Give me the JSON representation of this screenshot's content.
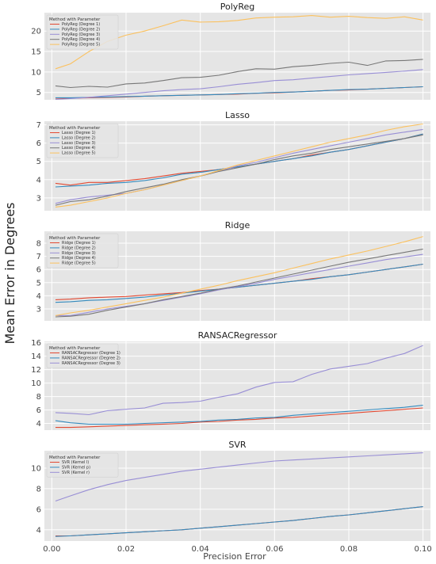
{
  "figure": {
    "ylabel": "Mean Error in Degrees",
    "xlabel": "Precision Error",
    "x_ticks": [
      "0.00",
      "0.02",
      "0.04",
      "0.06",
      "0.08",
      "0.10"
    ],
    "x_tick_values": [
      0,
      0.02,
      0.04,
      0.06,
      0.08,
      0.1
    ]
  },
  "chart_data": [
    {
      "type": "line",
      "title": "PolyReg",
      "xlim": [
        -0.002,
        0.102
      ],
      "ylim": [
        3.2,
        24.5
      ],
      "yticks": [
        5,
        10,
        15,
        20
      ],
      "grid": true,
      "legend_title": "Method with Parameter",
      "legend_position": "top-left",
      "x": [
        0.001,
        0.005,
        0.01,
        0.015,
        0.02,
        0.025,
        0.03,
        0.035,
        0.04,
        0.045,
        0.05,
        0.055,
        0.06,
        0.065,
        0.07,
        0.075,
        0.08,
        0.085,
        0.09,
        0.095,
        0.1
      ],
      "series": [
        {
          "name": "PolyReg (Degree 1)",
          "color": "#e24a33",
          "values": [
            3.6,
            3.6,
            3.7,
            3.8,
            3.9,
            4.1,
            4.2,
            4.3,
            4.4,
            4.5,
            4.6,
            4.8,
            4.9,
            5.1,
            5.3,
            5.5,
            5.6,
            5.8,
            6.0,
            6.2,
            6.4
          ]
        },
        {
          "name": "PolyReg (Degree 2)",
          "color": "#348abd",
          "values": [
            3.7,
            3.7,
            3.8,
            3.9,
            4.0,
            4.1,
            4.2,
            4.3,
            4.4,
            4.5,
            4.7,
            4.8,
            5.0,
            5.1,
            5.3,
            5.5,
            5.7,
            5.8,
            6.0,
            6.2,
            6.4
          ]
        },
        {
          "name": "PolyReg (Degree 3)",
          "color": "#988ed5",
          "values": [
            3.3,
            3.5,
            3.8,
            4.2,
            4.6,
            5.0,
            5.4,
            5.7,
            5.9,
            6.4,
            7.0,
            7.4,
            7.9,
            8.1,
            8.5,
            8.9,
            9.3,
            9.6,
            9.9,
            10.2,
            10.6
          ]
        },
        {
          "name": "PolyReg (Degree 4)",
          "color": "#777777",
          "values": [
            6.6,
            6.2,
            6.5,
            6.3,
            7.1,
            7.3,
            7.9,
            8.6,
            8.7,
            9.2,
            10.1,
            10.8,
            10.7,
            11.3,
            11.6,
            12.1,
            12.4,
            11.6,
            12.7,
            12.8,
            13.1
          ]
        },
        {
          "name": "PolyReg (Degree 5)",
          "color": "#fbc15e",
          "values": [
            10.8,
            12.0,
            15.0,
            17.5,
            19.0,
            20.0,
            21.3,
            22.7,
            22.2,
            22.3,
            22.6,
            23.2,
            23.4,
            23.5,
            23.8,
            23.4,
            23.6,
            23.3,
            23.1,
            23.5,
            22.7
          ]
        }
      ]
    },
    {
      "type": "line",
      "title": "Lasso",
      "xlim": [
        -0.002,
        0.102
      ],
      "ylim": [
        2.3,
        7.2
      ],
      "yticks": [
        3,
        4,
        5,
        6,
        7
      ],
      "grid": true,
      "legend_title": "Method with Parameter",
      "legend_position": "top-left",
      "x": [
        0.001,
        0.005,
        0.01,
        0.015,
        0.02,
        0.025,
        0.03,
        0.035,
        0.04,
        0.045,
        0.05,
        0.055,
        0.06,
        0.065,
        0.07,
        0.075,
        0.08,
        0.085,
        0.09,
        0.095,
        0.1
      ],
      "series": [
        {
          "name": "Lasso (Degree 1)",
          "color": "#e24a33",
          "values": [
            3.8,
            3.7,
            3.85,
            3.85,
            3.95,
            4.05,
            4.2,
            4.35,
            4.45,
            4.55,
            4.7,
            4.85,
            5.0,
            5.15,
            5.35,
            5.5,
            5.65,
            5.85,
            6.05,
            6.25,
            6.5
          ]
        },
        {
          "name": "Lasso (Degree 2)",
          "color": "#348abd",
          "values": [
            3.6,
            3.65,
            3.7,
            3.8,
            3.85,
            3.95,
            4.1,
            4.3,
            4.4,
            4.55,
            4.7,
            4.85,
            5.0,
            5.15,
            5.3,
            5.5,
            5.65,
            5.85,
            6.05,
            6.25,
            6.5
          ]
        },
        {
          "name": "Lasso (Degree 3)",
          "color": "#988ed5",
          "values": [
            2.7,
            2.9,
            3.05,
            3.15,
            3.25,
            3.45,
            3.7,
            3.95,
            4.2,
            4.45,
            4.75,
            4.95,
            5.2,
            5.45,
            5.65,
            5.85,
            6.05,
            6.25,
            6.45,
            6.6,
            6.75
          ]
        },
        {
          "name": "Lasso (Degree 4)",
          "color": "#777777",
          "values": [
            2.6,
            2.8,
            2.9,
            3.1,
            3.35,
            3.55,
            3.75,
            4.0,
            4.2,
            4.45,
            4.65,
            4.85,
            5.1,
            5.3,
            5.45,
            5.65,
            5.8,
            5.95,
            6.1,
            6.25,
            6.45
          ]
        },
        {
          "name": "Lasso (Degree 5)",
          "color": "#fbc15e",
          "values": [
            2.5,
            2.6,
            2.8,
            3.0,
            3.25,
            3.45,
            3.7,
            3.95,
            4.2,
            4.5,
            4.8,
            5.05,
            5.3,
            5.55,
            5.8,
            6.05,
            6.25,
            6.45,
            6.7,
            6.9,
            7.05
          ]
        }
      ]
    },
    {
      "type": "line",
      "title": "Ridge",
      "xlim": [
        -0.002,
        0.102
      ],
      "ylim": [
        2.1,
        8.9
      ],
      "yticks": [
        3,
        4,
        5,
        6,
        7,
        8
      ],
      "grid": true,
      "legend_title": "Method with Parameter",
      "legend_position": "top-left",
      "x": [
        0.001,
        0.005,
        0.01,
        0.015,
        0.02,
        0.025,
        0.03,
        0.035,
        0.04,
        0.045,
        0.05,
        0.055,
        0.06,
        0.065,
        0.07,
        0.075,
        0.08,
        0.085,
        0.09,
        0.095,
        0.1
      ],
      "series": [
        {
          "name": "Ridge (Degree 1)",
          "color": "#e24a33",
          "values": [
            3.7,
            3.75,
            3.85,
            3.9,
            3.95,
            4.05,
            4.15,
            4.25,
            4.4,
            4.5,
            4.65,
            4.8,
            4.95,
            5.1,
            5.3,
            5.45,
            5.6,
            5.8,
            6.0,
            6.2,
            6.4
          ]
        },
        {
          "name": "Ridge (Degree 2)",
          "color": "#348abd",
          "values": [
            3.5,
            3.55,
            3.65,
            3.7,
            3.8,
            3.9,
            4.05,
            4.2,
            4.35,
            4.5,
            4.65,
            4.8,
            4.95,
            5.1,
            5.25,
            5.45,
            5.6,
            5.8,
            6.0,
            6.2,
            6.4
          ]
        },
        {
          "name": "Ridge (Degree 3)",
          "color": "#988ed5",
          "values": [
            2.5,
            2.5,
            2.75,
            3.0,
            3.2,
            3.4,
            3.65,
            3.9,
            4.15,
            4.45,
            4.7,
            4.95,
            5.25,
            5.5,
            5.75,
            6.0,
            6.25,
            6.5,
            6.75,
            6.95,
            7.15
          ]
        },
        {
          "name": "Ridge (Degree 4)",
          "color": "#777777",
          "values": [
            2.4,
            2.45,
            2.6,
            2.9,
            3.15,
            3.4,
            3.7,
            3.95,
            4.2,
            4.5,
            4.75,
            5.05,
            5.35,
            5.65,
            5.95,
            6.25,
            6.55,
            6.8,
            7.05,
            7.3,
            7.55
          ]
        },
        {
          "name": "Ridge (Degree 5)",
          "color": "#fbc15e",
          "values": [
            2.5,
            2.7,
            2.9,
            3.15,
            3.4,
            3.65,
            3.9,
            4.2,
            4.5,
            4.8,
            5.15,
            5.45,
            5.75,
            6.1,
            6.45,
            6.8,
            7.1,
            7.4,
            7.75,
            8.1,
            8.5
          ]
        }
      ]
    },
    {
      "type": "line",
      "title": "RANSACRegressor",
      "xlim": [
        -0.002,
        0.102
      ],
      "ylim": [
        3.0,
        16.2
      ],
      "yticks": [
        4,
        6,
        8,
        10,
        12,
        14,
        16
      ],
      "grid": true,
      "legend_title": "Method with Parameter",
      "legend_position": "top-left",
      "x": [
        0.001,
        0.005,
        0.01,
        0.015,
        0.02,
        0.025,
        0.03,
        0.035,
        0.04,
        0.045,
        0.05,
        0.055,
        0.06,
        0.065,
        0.07,
        0.075,
        0.08,
        0.085,
        0.09,
        0.095,
        0.1
      ],
      "series": [
        {
          "name": "RANSACRegressor (Degree 1)",
          "color": "#e24a33",
          "values": [
            3.4,
            3.4,
            3.5,
            3.6,
            3.7,
            3.8,
            3.9,
            4.0,
            4.2,
            4.3,
            4.5,
            4.6,
            4.8,
            4.9,
            5.1,
            5.3,
            5.5,
            5.7,
            5.9,
            6.1,
            6.3
          ]
        },
        {
          "name": "RANSACRegressor (Degree 2)",
          "color": "#348abd",
          "values": [
            4.4,
            4.1,
            3.9,
            3.9,
            3.9,
            4.0,
            4.1,
            4.2,
            4.3,
            4.5,
            4.6,
            4.8,
            4.9,
            5.2,
            5.4,
            5.6,
            5.8,
            6.0,
            6.2,
            6.4,
            6.7
          ]
        },
        {
          "name": "RANSACRegressor (Degree 3)",
          "color": "#988ed5",
          "values": [
            5.6,
            5.5,
            5.3,
            5.9,
            6.1,
            6.3,
            7.0,
            7.1,
            7.3,
            7.9,
            8.4,
            9.4,
            10.1,
            10.2,
            11.3,
            12.1,
            12.5,
            12.9,
            13.7,
            14.4,
            15.6
          ]
        }
      ]
    },
    {
      "type": "line",
      "title": "SVR",
      "xlim": [
        -0.002,
        0.102
      ],
      "ylim": [
        2.9,
        11.7
      ],
      "yticks": [
        4,
        6,
        8,
        10
      ],
      "grid": true,
      "legend_title": "Method with Parameter",
      "legend_position": "top-left",
      "x": [
        0.001,
        0.005,
        0.01,
        0.015,
        0.02,
        0.025,
        0.03,
        0.035,
        0.04,
        0.045,
        0.05,
        0.055,
        0.06,
        0.065,
        0.07,
        0.075,
        0.08,
        0.085,
        0.09,
        0.095,
        0.1
      ],
      "series": [
        {
          "name": "SVR (Kernel l)",
          "color": "#e24a33",
          "values": [
            3.4,
            3.4,
            3.5,
            3.6,
            3.7,
            3.8,
            3.9,
            4.0,
            4.15,
            4.3,
            4.45,
            4.6,
            4.75,
            4.9,
            5.1,
            5.3,
            5.45,
            5.65,
            5.85,
            6.05,
            6.25
          ]
        },
        {
          "name": "SVR (Kernel p)",
          "color": "#348abd",
          "values": [
            3.35,
            3.4,
            3.5,
            3.6,
            3.7,
            3.8,
            3.9,
            4.0,
            4.15,
            4.3,
            4.45,
            4.6,
            4.75,
            4.9,
            5.1,
            5.3,
            5.45,
            5.65,
            5.85,
            6.05,
            6.25
          ]
        },
        {
          "name": "SVR (Kernel r)",
          "color": "#988ed5",
          "values": [
            6.8,
            7.3,
            7.9,
            8.4,
            8.8,
            9.1,
            9.4,
            9.7,
            9.9,
            10.1,
            10.3,
            10.5,
            10.7,
            10.8,
            10.9,
            11.0,
            11.1,
            11.2,
            11.3,
            11.4,
            11.5
          ]
        }
      ]
    }
  ]
}
